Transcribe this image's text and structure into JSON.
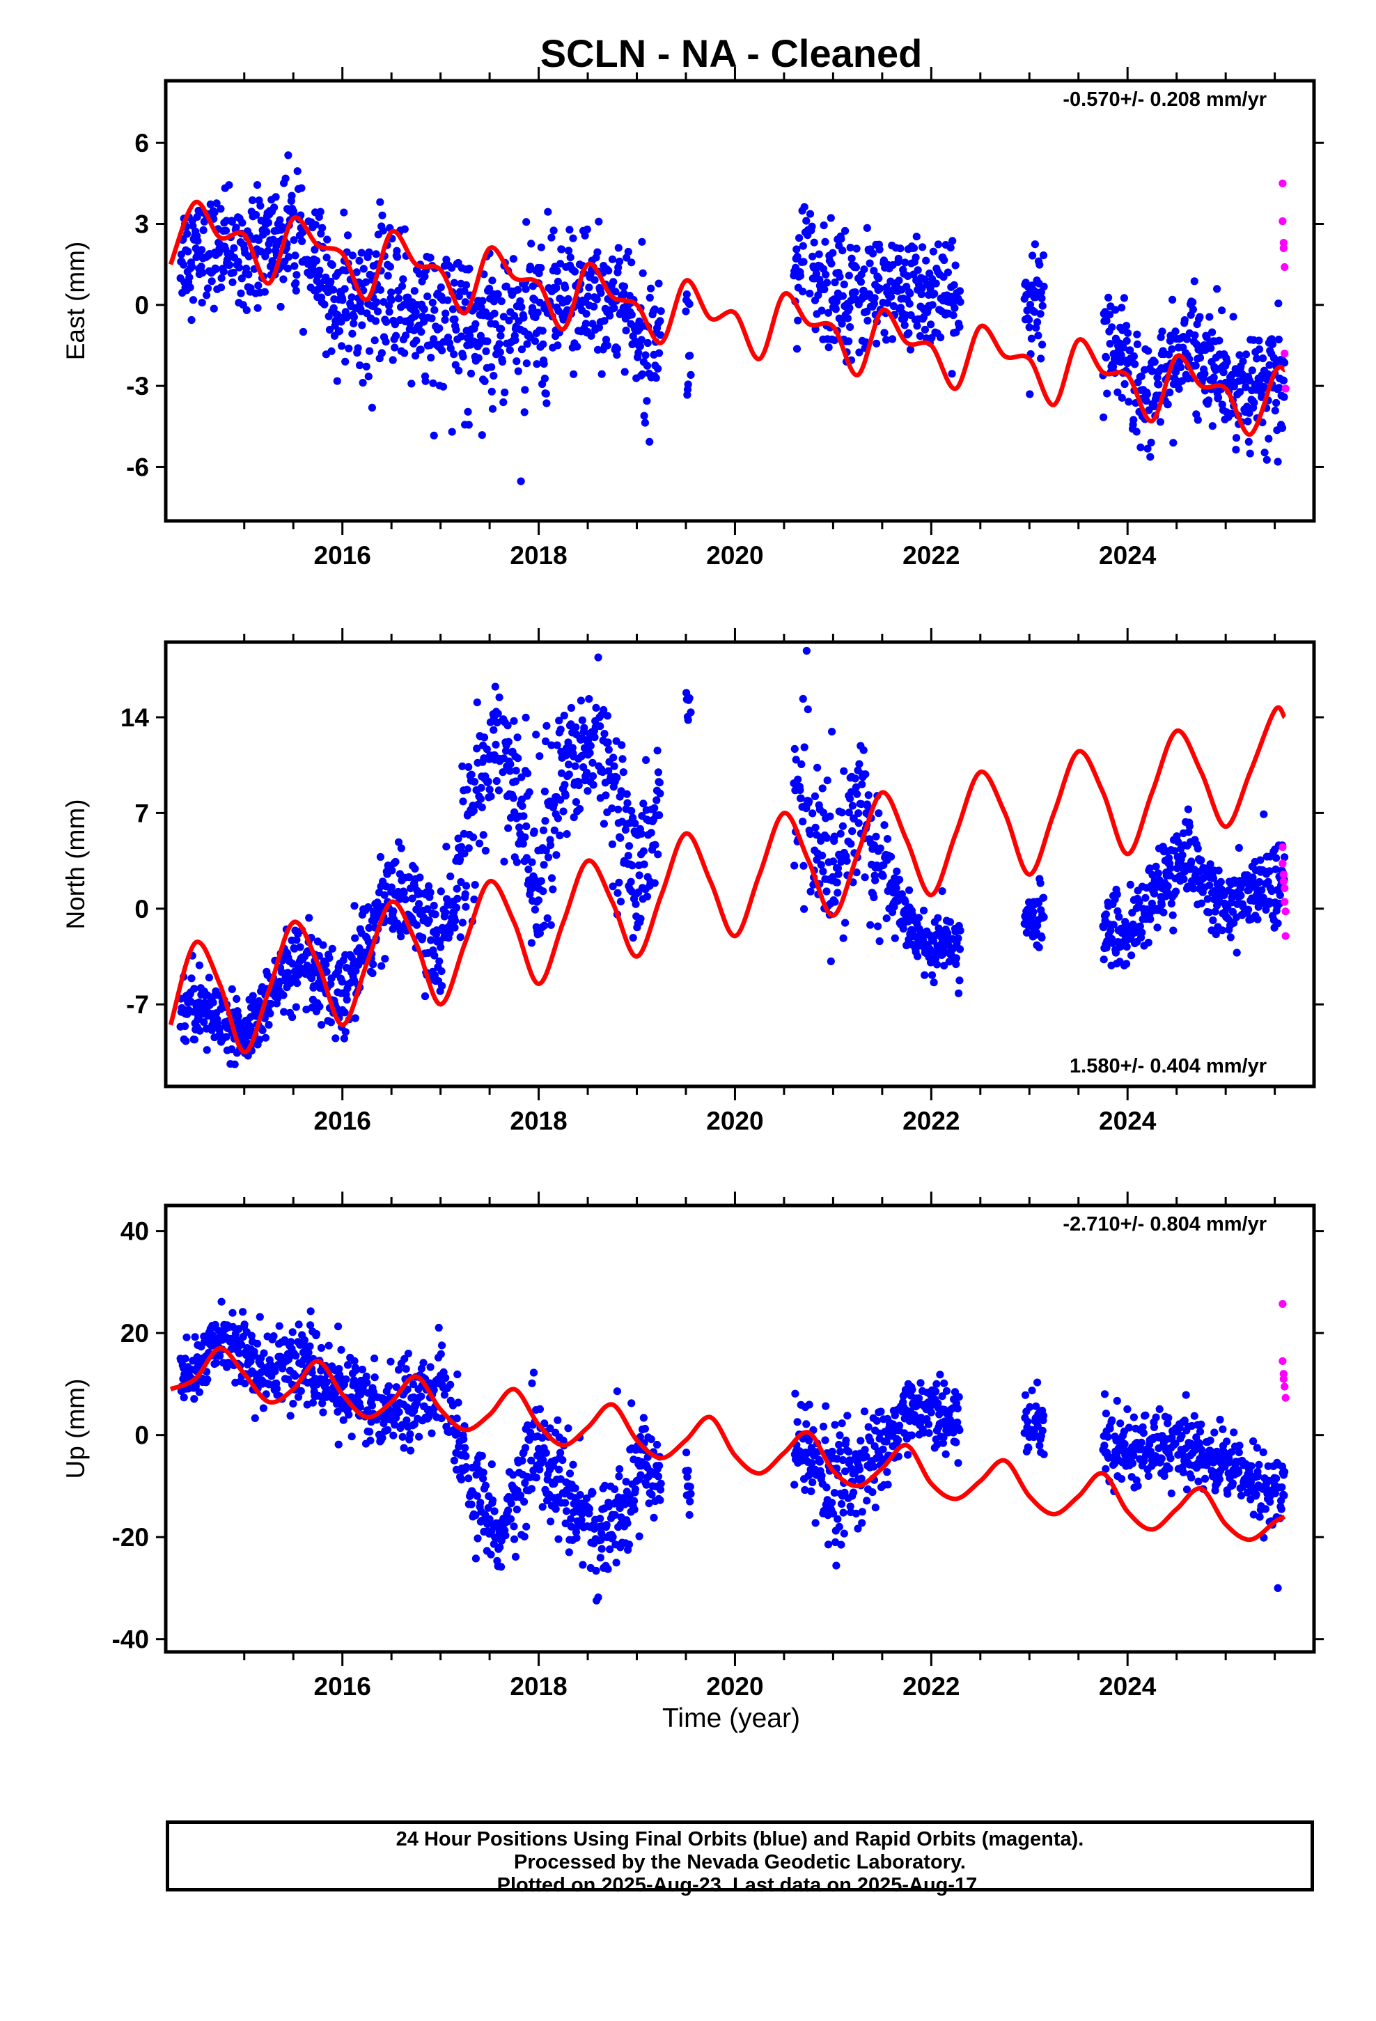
{
  "title": "SCLN  - NA - Cleaned",
  "xlabel": "Time (year)",
  "caption": {
    "line1": "24 Hour Positions Using Final Orbits (blue) and Rapid Orbits (magenta).",
    "line2": "Processed by the Nevada Geodetic Laboratory.",
    "line3": "Plotted on 2025-Aug-23. Last data on 2025-Aug-17."
  },
  "colors": {
    "final": "#0000ff",
    "rapid": "#ff00ff",
    "model": "#ff0000"
  },
  "chart_data": [
    {
      "type": "scatter",
      "component": "east",
      "ylabel": "East (mm)",
      "rate_label": "-0.570+/- 0.208 mm/yr",
      "rate_position": "top-right",
      "xlim": [
        2014.2,
        2025.9
      ],
      "ylim": [
        -8,
        8.3
      ],
      "yticks": [
        -6,
        -3,
        0,
        3,
        6
      ],
      "xticks": [
        2016,
        2018,
        2020,
        2022,
        2024
      ],
      "segments": [
        [
          2014.35,
          2019.25
        ],
        [
          2019.5,
          2019.55
        ],
        [
          2020.6,
          2022.3
        ],
        [
          2022.95,
          2023.15
        ],
        [
          2023.75,
          2025.6
        ]
      ],
      "final_cloud": [
        [
          2014.5,
          2.0,
          1.3
        ],
        [
          2015.0,
          2.0,
          1.2
        ],
        [
          2015.5,
          2.5,
          1.6
        ],
        [
          2016.0,
          0.0,
          1.4
        ],
        [
          2016.5,
          0.5,
          1.8
        ],
        [
          2017.0,
          -0.8,
          2.0
        ],
        [
          2017.5,
          -0.5,
          2.0
        ],
        [
          2018.0,
          -0.5,
          2.0
        ],
        [
          2018.5,
          0.5,
          1.8
        ],
        [
          2019.0,
          -0.5,
          1.6
        ],
        [
          2019.5,
          -1.5,
          2.0
        ],
        [
          2020.7,
          1.5,
          1.4
        ],
        [
          2021.0,
          0.5,
          1.6
        ],
        [
          2021.5,
          0.5,
          1.4
        ],
        [
          2022.0,
          0.5,
          1.2
        ],
        [
          2022.3,
          0.0,
          1.2
        ],
        [
          2023.0,
          0.0,
          1.4
        ],
        [
          2023.8,
          -1.5,
          1.4
        ],
        [
          2024.2,
          -3.5,
          1.4
        ],
        [
          2024.6,
          -1.5,
          1.3
        ],
        [
          2025.0,
          -3.0,
          1.3
        ],
        [
          2025.5,
          -3.0,
          1.4
        ]
      ],
      "rapid_points": [
        [
          2025.58,
          4.5
        ],
        [
          2025.58,
          3.1
        ],
        [
          2025.59,
          2.3
        ],
        [
          2025.59,
          2.1
        ],
        [
          2025.6,
          1.4
        ],
        [
          2025.6,
          -1.8
        ],
        [
          2025.61,
          -3.1
        ]
      ],
      "model": {
        "x": [
          2014.25,
          2014.5,
          2014.75,
          2015.0,
          2015.25,
          2015.5,
          2015.75,
          2016.0,
          2016.25,
          2016.5,
          2016.75,
          2017.0,
          2017.25,
          2017.5,
          2017.75,
          2018.0,
          2018.25,
          2018.5,
          2018.75,
          2019.0,
          2019.25,
          2019.5,
          2019.75,
          2020.0,
          2020.25,
          2020.5,
          2020.75,
          2021.0,
          2021.25,
          2021.5,
          2021.75,
          2022.0,
          2022.25,
          2022.5,
          2022.75,
          2023.0,
          2023.25,
          2023.5,
          2023.75,
          2024.0,
          2024.25,
          2024.5,
          2024.75,
          2025.0,
          2025.25,
          2025.5,
          2025.6
        ],
        "y": [
          1.5,
          3.8,
          2.5,
          2.6,
          0.8,
          3.2,
          2.2,
          1.9,
          0.2,
          2.7,
          1.5,
          1.3,
          -0.3,
          2.1,
          1.0,
          0.8,
          -0.9,
          1.5,
          0.3,
          0.0,
          -1.4,
          0.9,
          -0.5,
          -0.3,
          -2.0,
          0.4,
          -0.7,
          -0.8,
          -2.6,
          -0.2,
          -1.4,
          -1.5,
          -3.1,
          -0.8,
          -1.9,
          -2.0,
          -3.7,
          -1.3,
          -2.5,
          -2.6,
          -4.3,
          -1.9,
          -3.0,
          -3.1,
          -4.8,
          -2.5,
          -2.4
        ]
      }
    },
    {
      "type": "scatter",
      "component": "north",
      "ylabel": "North (mm)",
      "rate_label": "1.580+/- 0.404 mm/yr",
      "rate_position": "bottom-right",
      "xlim": [
        2014.2,
        2025.9
      ],
      "ylim": [
        -13,
        19.5
      ],
      "yticks": [
        -7,
        0,
        7,
        14
      ],
      "xticks": [
        2016,
        2018,
        2020,
        2022,
        2024
      ],
      "segments": [
        [
          2014.35,
          2019.25
        ],
        [
          2019.5,
          2019.55
        ],
        [
          2020.6,
          2022.3
        ],
        [
          2022.95,
          2023.15
        ],
        [
          2023.75,
          2025.6
        ]
      ],
      "final_cloud": [
        [
          2014.5,
          -7.0,
          1.6
        ],
        [
          2015.0,
          -9.5,
          1.5
        ],
        [
          2015.5,
          -4.0,
          2.0
        ],
        [
          2016.0,
          -7.0,
          2.0
        ],
        [
          2016.5,
          2.0,
          2.5
        ],
        [
          2017.0,
          -3.0,
          2.5
        ],
        [
          2017.3,
          6.0,
          4.0
        ],
        [
          2017.6,
          13.0,
          3.0
        ],
        [
          2018.0,
          2.0,
          5.0
        ],
        [
          2018.2,
          9.0,
          4.0
        ],
        [
          2018.6,
          13.0,
          3.0
        ],
        [
          2019.0,
          2.0,
          4.0
        ],
        [
          2019.5,
          15.0,
          1.5
        ],
        [
          2020.7,
          8.0,
          4.0
        ],
        [
          2021.0,
          2.0,
          4.0
        ],
        [
          2021.3,
          8.0,
          4.0
        ],
        [
          2021.6,
          1.0,
          2.0
        ],
        [
          2022.0,
          -3.0,
          1.5
        ],
        [
          2023.1,
          -0.5,
          1.5
        ],
        [
          2024.0,
          -2.0,
          2.0
        ],
        [
          2024.6,
          4.0,
          1.8
        ],
        [
          2025.0,
          0.0,
          1.5
        ],
        [
          2025.5,
          2.0,
          2.0
        ]
      ],
      "rapid_points": [
        [
          2025.58,
          4.5
        ],
        [
          2025.58,
          3.3
        ],
        [
          2025.59,
          2.5
        ],
        [
          2025.59,
          2.0
        ],
        [
          2025.6,
          1.5
        ],
        [
          2025.6,
          0.5
        ],
        [
          2025.61,
          -0.2
        ],
        [
          2025.61,
          -2.0
        ]
      ],
      "model": {
        "x": [
          2014.25,
          2014.5,
          2014.75,
          2015.0,
          2015.25,
          2015.5,
          2015.75,
          2016.0,
          2016.25,
          2016.5,
          2016.75,
          2017.0,
          2017.25,
          2017.5,
          2017.75,
          2018.0,
          2018.25,
          2018.5,
          2018.75,
          2019.0,
          2019.25,
          2019.5,
          2019.75,
          2020.0,
          2020.25,
          2020.5,
          2020.75,
          2021.0,
          2021.25,
          2021.5,
          2021.75,
          2022.0,
          2022.25,
          2022.5,
          2022.75,
          2023.0,
          2023.25,
          2023.5,
          2023.75,
          2024.0,
          2024.25,
          2024.5,
          2024.75,
          2025.0,
          2025.25,
          2025.5,
          2025.6
        ],
        "y": [
          -8.5,
          -2.5,
          -5.5,
          -10.5,
          -6.0,
          -1.0,
          -4.0,
          -8.5,
          -4.0,
          0.5,
          -2.5,
          -7.0,
          -2.5,
          2.0,
          -1.0,
          -5.5,
          -1.0,
          3.5,
          0.5,
          -3.5,
          1.0,
          5.5,
          2.0,
          -2.0,
          2.5,
          7.0,
          3.5,
          -0.5,
          4.0,
          8.5,
          5.0,
          1.0,
          5.5,
          10.0,
          7.0,
          2.5,
          7.0,
          11.5,
          8.5,
          4.0,
          8.5,
          13.0,
          10.0,
          6.0,
          10.0,
          14.5,
          14.0
        ]
      }
    },
    {
      "type": "scatter",
      "component": "up",
      "ylabel": "Up (mm)",
      "rate_label": "-2.710+/- 0.804 mm/yr",
      "rate_position": "top-right",
      "xlim": [
        2014.2,
        2025.9
      ],
      "ylim": [
        -42.5,
        45
      ],
      "yticks": [
        -40,
        -20,
        0,
        20,
        40
      ],
      "xticks": [
        2016,
        2018,
        2020,
        2022,
        2024
      ],
      "segments": [
        [
          2014.35,
          2019.25
        ],
        [
          2019.5,
          2019.55
        ],
        [
          2020.6,
          2022.3
        ],
        [
          2022.95,
          2023.15
        ],
        [
          2023.75,
          2025.6
        ]
      ],
      "final_cloud": [
        [
          2014.5,
          12.0,
          4.0
        ],
        [
          2014.8,
          20.0,
          4.5
        ],
        [
          2015.2,
          12.0,
          5.0
        ],
        [
          2015.6,
          15.0,
          5.5
        ],
        [
          2016.0,
          8.0,
          5.0
        ],
        [
          2016.5,
          5.0,
          5.5
        ],
        [
          2017.0,
          10.0,
          5.0
        ],
        [
          2017.3,
          -10.0,
          6.0
        ],
        [
          2017.6,
          -18.0,
          6.0
        ],
        [
          2018.0,
          -2.0,
          8.0
        ],
        [
          2018.4,
          -15.0,
          7.0
        ],
        [
          2018.7,
          -20.0,
          7.0
        ],
        [
          2019.0,
          -5.0,
          8.0
        ],
        [
          2019.5,
          -10.0,
          5.0
        ],
        [
          2020.7,
          -3.0,
          6.0
        ],
        [
          2021.0,
          -12.0,
          8.0
        ],
        [
          2021.4,
          -5.0,
          6.0
        ],
        [
          2021.8,
          5.0,
          4.5
        ],
        [
          2022.2,
          2.0,
          5.0
        ],
        [
          2023.1,
          2.0,
          5.0
        ],
        [
          2024.0,
          -3.0,
          4.5
        ],
        [
          2024.6,
          -2.0,
          4.5
        ],
        [
          2025.0,
          -5.0,
          4.5
        ],
        [
          2025.5,
          -12.0,
          5.0
        ]
      ],
      "rapid_points": [
        [
          2025.58,
          25.7
        ],
        [
          2025.58,
          14.5
        ],
        [
          2025.59,
          12.0
        ],
        [
          2025.59,
          11.0
        ],
        [
          2025.6,
          9.5
        ],
        [
          2025.61,
          7.3
        ]
      ],
      "model": {
        "x": [
          2014.25,
          2014.5,
          2014.75,
          2015.0,
          2015.25,
          2015.5,
          2015.75,
          2016.0,
          2016.25,
          2016.5,
          2016.75,
          2017.0,
          2017.25,
          2017.5,
          2017.75,
          2018.0,
          2018.25,
          2018.5,
          2018.75,
          2019.0,
          2019.25,
          2019.5,
          2019.75,
          2020.0,
          2020.25,
          2020.5,
          2020.75,
          2021.0,
          2021.25,
          2021.5,
          2021.75,
          2022.0,
          2022.25,
          2022.5,
          2022.75,
          2023.0,
          2023.25,
          2023.5,
          2023.75,
          2024.0,
          2024.25,
          2024.5,
          2024.75,
          2025.0,
          2025.25,
          2025.5,
          2025.6
        ],
        "y": [
          9.0,
          11.0,
          17.0,
          12.0,
          6.5,
          9.0,
          14.5,
          8.0,
          3.5,
          6.5,
          11.5,
          5.0,
          1.0,
          4.0,
          9.0,
          2.0,
          -2.0,
          1.5,
          6.0,
          -1.0,
          -4.5,
          -1.0,
          3.5,
          -4.0,
          -7.5,
          -3.5,
          0.5,
          -7.0,
          -10.0,
          -6.5,
          -2.0,
          -9.5,
          -12.5,
          -9.0,
          -5.0,
          -12.0,
          -15.5,
          -12.0,
          -7.5,
          -15.0,
          -18.5,
          -14.5,
          -10.5,
          -17.5,
          -20.5,
          -17.0,
          -16.0
        ]
      }
    }
  ]
}
